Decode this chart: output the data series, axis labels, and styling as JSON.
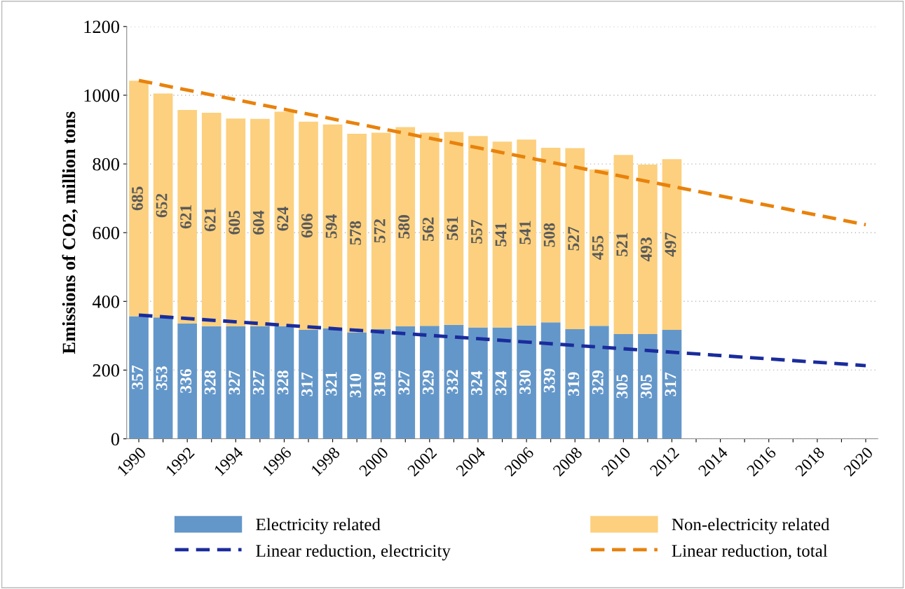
{
  "chart_data": {
    "type": "bar",
    "stacked": true,
    "ylabel": "Emissions of CO2, million tons",
    "categories": [
      "1990",
      null,
      "1992",
      null,
      "1994",
      null,
      "1996",
      null,
      "1998",
      null,
      "2000",
      null,
      "2002",
      null,
      "2004",
      null,
      "2006",
      null,
      "2008",
      null,
      "2010",
      null,
      "2012",
      null,
      "2014",
      null,
      "2016",
      null,
      "2018",
      null,
      "2020"
    ],
    "series": [
      {
        "name": "Electricity related",
        "color": "#6497c9",
        "value_labels": [
          "357",
          "353",
          "336",
          "328",
          "327",
          "327",
          "328",
          "317",
          "321",
          "310",
          "319",
          "327",
          "329",
          "332",
          "324",
          "324",
          "330",
          "339",
          "319",
          "329",
          "305",
          "305",
          "317",
          null,
          null,
          null,
          null,
          null,
          null,
          null,
          null
        ],
        "values": [
          357,
          353,
          336,
          328,
          327,
          327,
          328,
          317,
          321,
          310,
          319,
          327,
          329,
          332,
          324,
          324,
          330,
          339,
          319,
          329,
          305,
          305,
          317,
          null,
          null,
          null,
          null,
          null,
          null,
          null,
          null
        ]
      },
      {
        "name": "Non-electricity related",
        "color": "#fcd07e",
        "value_labels": [
          "685",
          "652",
          "621",
          "621",
          "605",
          "604",
          "624",
          "606",
          "594",
          "578",
          "572",
          "580",
          "562",
          "561",
          "557",
          "541",
          "541",
          "508",
          "527",
          "455",
          "521",
          "493",
          "497",
          null,
          null,
          null,
          null,
          null,
          null,
          null,
          null
        ],
        "values": [
          685,
          652,
          621,
          621,
          605,
          604,
          624,
          606,
          594,
          578,
          572,
          580,
          562,
          561,
          557,
          541,
          541,
          508,
          527,
          455,
          521,
          493,
          497,
          null,
          null,
          null,
          null,
          null,
          null,
          null,
          null
        ]
      },
      {
        "name": "Linear reduction, electricity",
        "type": "line",
        "line_style": "dashed",
        "color": "#1a2c9c",
        "values": [
          360,
          null,
          null,
          null,
          null,
          null,
          null,
          null,
          null,
          null,
          null,
          null,
          null,
          null,
          null,
          null,
          null,
          null,
          null,
          null,
          null,
          null,
          null,
          null,
          null,
          null,
          null,
          null,
          null,
          null,
          213
        ]
      },
      {
        "name": "Linear reduction, total",
        "type": "line",
        "line_style": "dashed",
        "color": "#e8820c",
        "values": [
          1043,
          null,
          null,
          null,
          null,
          null,
          null,
          null,
          null,
          null,
          null,
          null,
          null,
          null,
          null,
          null,
          null,
          null,
          null,
          null,
          null,
          null,
          null,
          null,
          null,
          null,
          null,
          null,
          null,
          null,
          623
        ]
      }
    ],
    "ylim": [
      0,
      1200
    ],
    "yticks": [
      0,
      200,
      400,
      600,
      800,
      1000,
      1200
    ],
    "grid": "y",
    "legend": "bottom"
  }
}
